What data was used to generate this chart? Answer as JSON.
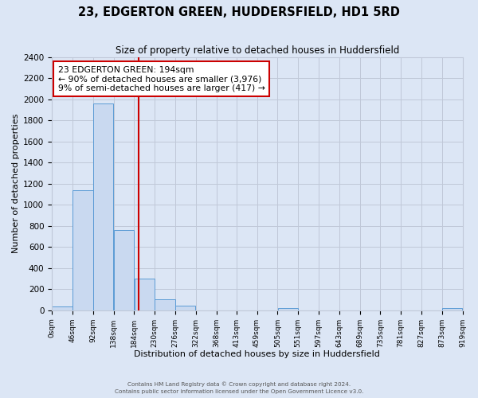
{
  "title": "23, EDGERTON GREEN, HUDDERSFIELD, HD1 5RD",
  "subtitle": "Size of property relative to detached houses in Huddersfield",
  "xlabel": "Distribution of detached houses by size in Huddersfield",
  "ylabel": "Number of detached properties",
  "bin_edges": [
    0,
    46,
    92,
    138,
    184,
    230,
    276,
    322,
    368,
    413,
    459,
    505,
    551,
    597,
    643,
    689,
    735,
    781,
    827,
    873,
    919
  ],
  "bin_labels": [
    "0sqm",
    "46sqm",
    "92sqm",
    "138sqm",
    "184sqm",
    "230sqm",
    "276sqm",
    "322sqm",
    "368sqm",
    "413sqm",
    "459sqm",
    "505sqm",
    "551sqm",
    "597sqm",
    "643sqm",
    "689sqm",
    "735sqm",
    "781sqm",
    "827sqm",
    "873sqm",
    "919sqm"
  ],
  "counts": [
    35,
    1140,
    1960,
    760,
    300,
    100,
    45,
    0,
    0,
    0,
    0,
    20,
    0,
    0,
    0,
    0,
    0,
    0,
    0,
    20
  ],
  "bar_color": "#c9d9f0",
  "bar_edge_color": "#5b9bd5",
  "vline_x": 194,
  "vline_color": "#cc0000",
  "annotation_line1": "23 EDGERTON GREEN: 194sqm",
  "annotation_line2": "← 90% of detached houses are smaller (3,976)",
  "annotation_line3": "9% of semi-detached houses are larger (417) →",
  "annotation_box_color": "#ffffff",
  "annotation_box_edge_color": "#cc0000",
  "ylim": [
    0,
    2400
  ],
  "yticks": [
    0,
    200,
    400,
    600,
    800,
    1000,
    1200,
    1400,
    1600,
    1800,
    2000,
    2200,
    2400
  ],
  "grid_color": "#c0c8d8",
  "background_color": "#dce6f5",
  "footer_line1": "Contains HM Land Registry data © Crown copyright and database right 2024.",
  "footer_line2": "Contains public sector information licensed under the Open Government Licence v3.0."
}
